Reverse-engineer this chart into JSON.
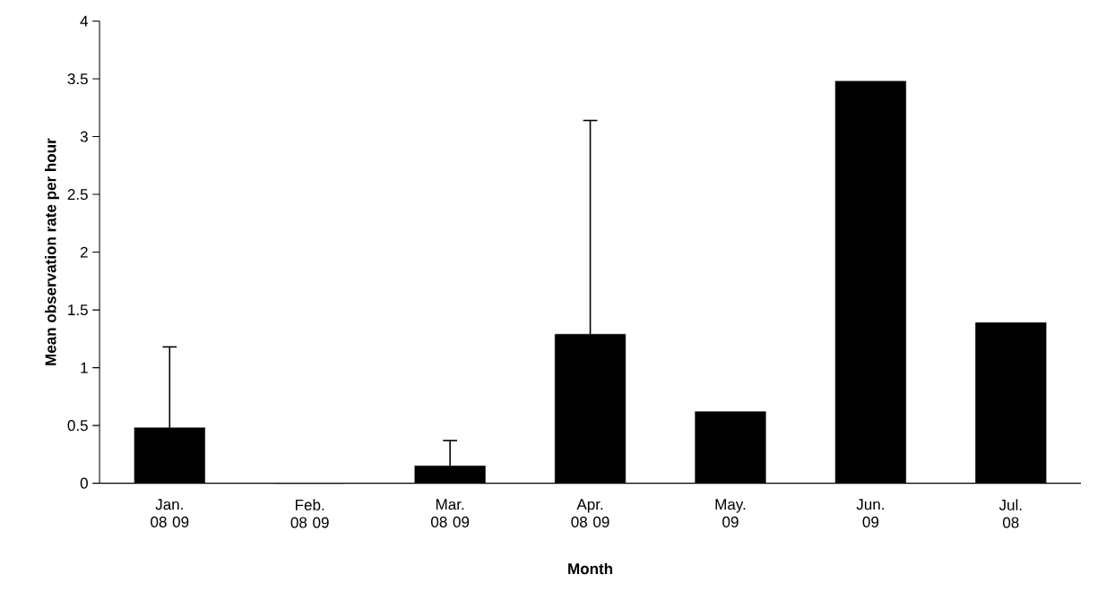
{
  "chart_data": {
    "type": "bar",
    "xlabel": "Month",
    "ylabel": "Mean observation rate per hour",
    "categories": [
      "Jan. 08 09",
      "Feb. 08 09",
      "Mar. 08 09",
      "Apr. 08 09",
      "May. 09",
      "Jun. 09",
      "Jul. 08"
    ],
    "values": [
      0.48,
      0,
      0.15,
      1.29,
      0.62,
      3.48,
      1.39
    ],
    "errors": [
      [
        0.48,
        1.18
      ],
      null,
      [
        0.15,
        0.37
      ],
      [
        1.29,
        3.14
      ],
      null,
      null,
      null
    ],
    "color": "#000000",
    "ylim": [
      0,
      4
    ],
    "yticks": [
      0,
      0.5,
      1,
      1.5,
      2,
      2.5,
      3,
      3.5,
      4
    ]
  }
}
